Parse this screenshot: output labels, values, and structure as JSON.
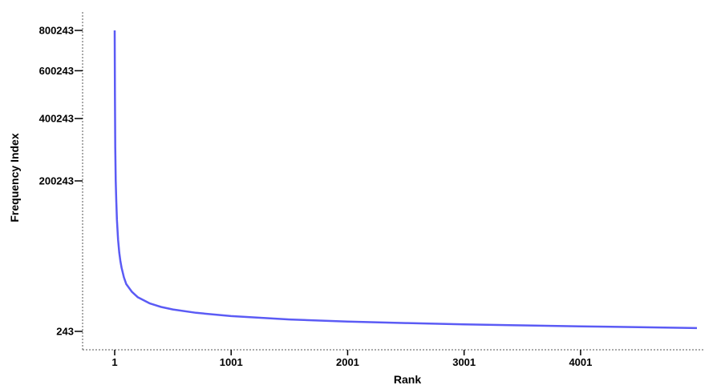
{
  "chart_data": {
    "type": "line",
    "title": "",
    "xlabel": "Rank",
    "ylabel": "Frequency Index",
    "x_ticks": [
      "1",
      "1001",
      "2001",
      "3001",
      "4001"
    ],
    "y_ticks": [
      "243",
      "200243",
      "400243",
      "600243",
      "800243"
    ],
    "y_scale": "sqrt",
    "xlim": [
      1,
      5000
    ],
    "ylim": [
      243,
      800243
    ],
    "grid": false,
    "legend": "none",
    "line_color": "#5b5bf5",
    "series": [
      {
        "x": [
          1,
          3,
          6,
          10,
          15,
          20,
          30,
          40,
          50,
          60,
          80,
          100,
          150,
          200,
          300,
          400,
          500,
          700,
          1000,
          1500,
          2000,
          2500,
          3000,
          3500,
          4000,
          4500,
          5000
        ],
        "y": [
          800243,
          500000,
          300000,
          200000,
          150000,
          110000,
          75000,
          55000,
          44000,
          36000,
          26000,
          20000,
          14000,
          10500,
          7200,
          5500,
          4500,
          3300,
          2300,
          1500,
          1100,
          850,
          680,
          560,
          470,
          400,
          340
        ]
      }
    ]
  }
}
